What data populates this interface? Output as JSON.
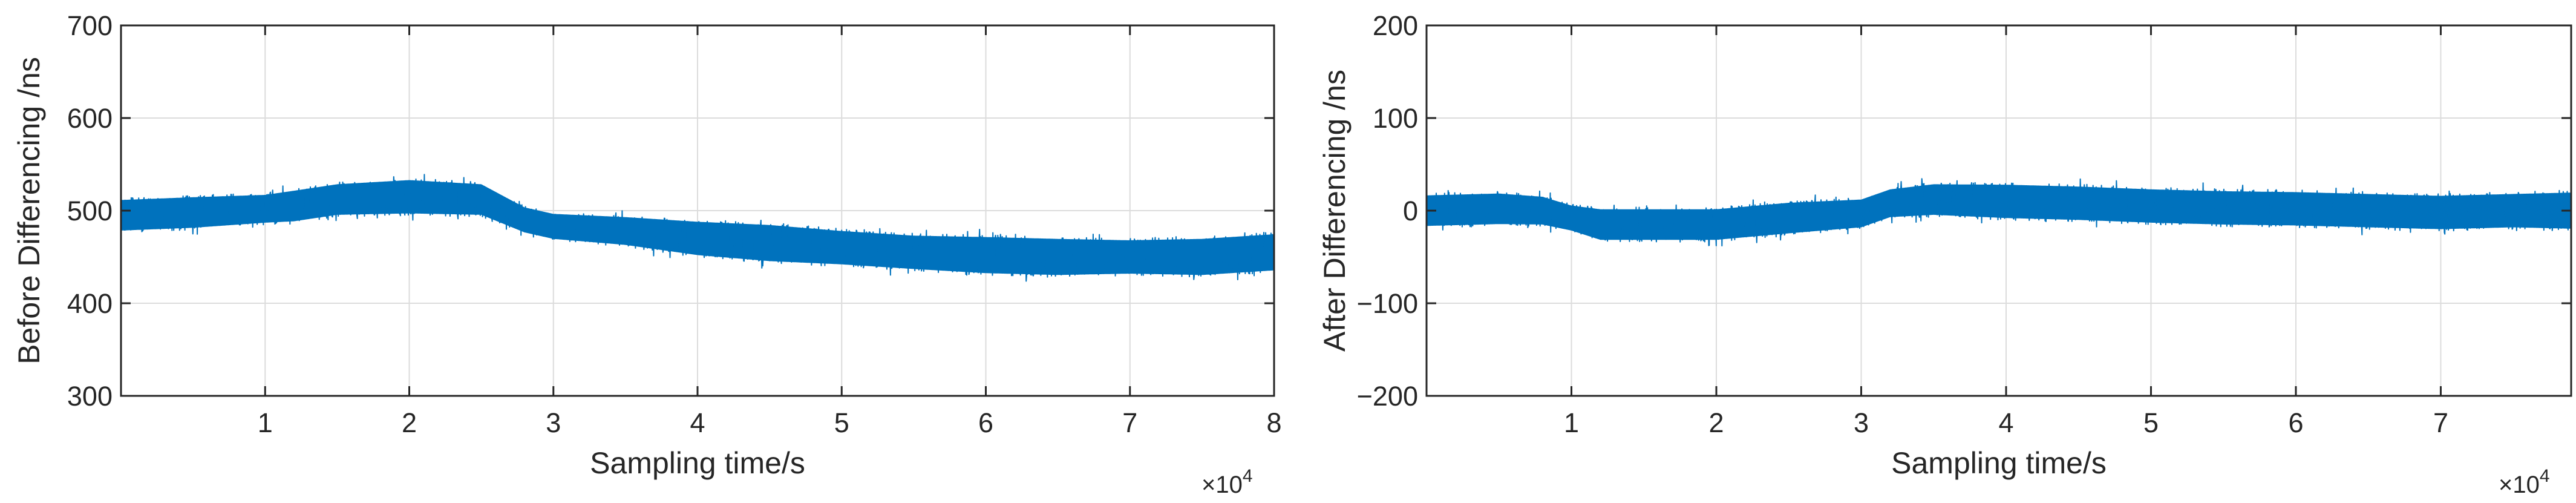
{
  "chart_data": [
    {
      "type": "line",
      "xlabel": "Sampling time/s",
      "ylabel": "Before Differencing /ns",
      "x_multiplier": "×10",
      "x_multiplier_exp": "4",
      "xlim": [
        0,
        80000
      ],
      "ylim": [
        300,
        700
      ],
      "xticks": [
        10000,
        20000,
        30000,
        40000,
        50000,
        60000,
        70000,
        80000
      ],
      "xtick_labels": [
        "1",
        "2",
        "3",
        "4",
        "5",
        "6",
        "7",
        "8"
      ],
      "yticks": [
        300,
        400,
        500,
        600,
        700
      ],
      "ytick_labels": [
        "300",
        "400",
        "500",
        "600",
        "700"
      ],
      "grid": true,
      "color": "#0072BD",
      "series": [
        {
          "x": [
            0,
            5000,
            10000,
            12000,
            15000,
            20000,
            25000,
            28000,
            30000,
            35000,
            40000,
            45000,
            50000,
            55000,
            60000,
            65000,
            70000,
            75000,
            80000
          ],
          "values": [
            495,
            498,
            502,
            505,
            512,
            515,
            512,
            490,
            483,
            478,
            470,
            465,
            460,
            455,
            452,
            450,
            450,
            450,
            455
          ],
          "band_halfwidth": [
            22,
            22,
            20,
            22,
            22,
            24,
            22,
            18,
            18,
            20,
            24,
            26,
            24,
            24,
            26,
            26,
            24,
            26,
            26
          ]
        }
      ]
    },
    {
      "type": "line",
      "xlabel": "Sampling time/s",
      "ylabel": "After Differencing /ns",
      "x_multiplier": "×10",
      "x_multiplier_exp": "4",
      "xlim": [
        0,
        79000
      ],
      "ylim": [
        -200,
        200
      ],
      "xticks": [
        10000,
        20000,
        30000,
        40000,
        50000,
        60000,
        70000
      ],
      "xtick_labels": [
        "1",
        "2",
        "3",
        "4",
        "5",
        "6",
        "7"
      ],
      "yticks": [
        -200,
        -100,
        0,
        100,
        200
      ],
      "ytick_labels": [
        "−200",
        "−100",
        "0",
        "100",
        "200"
      ],
      "grid": true,
      "color": "#0072BD",
      "series": [
        {
          "x": [
            0,
            5000,
            8000,
            10000,
            12000,
            15000,
            20000,
            25000,
            30000,
            32000,
            35000,
            40000,
            45000,
            50000,
            55000,
            60000,
            65000,
            70000,
            75000,
            79000
          ],
          "values": [
            0,
            2,
            0,
            -8,
            -15,
            -15,
            -15,
            -8,
            -3,
            8,
            12,
            10,
            8,
            5,
            3,
            2,
            0,
            -2,
            0,
            0
          ],
          "band_halfwidth": [
            22,
            22,
            20,
            18,
            22,
            22,
            22,
            22,
            20,
            20,
            22,
            24,
            24,
            24,
            24,
            24,
            24,
            24,
            24,
            26
          ]
        }
      ]
    }
  ]
}
